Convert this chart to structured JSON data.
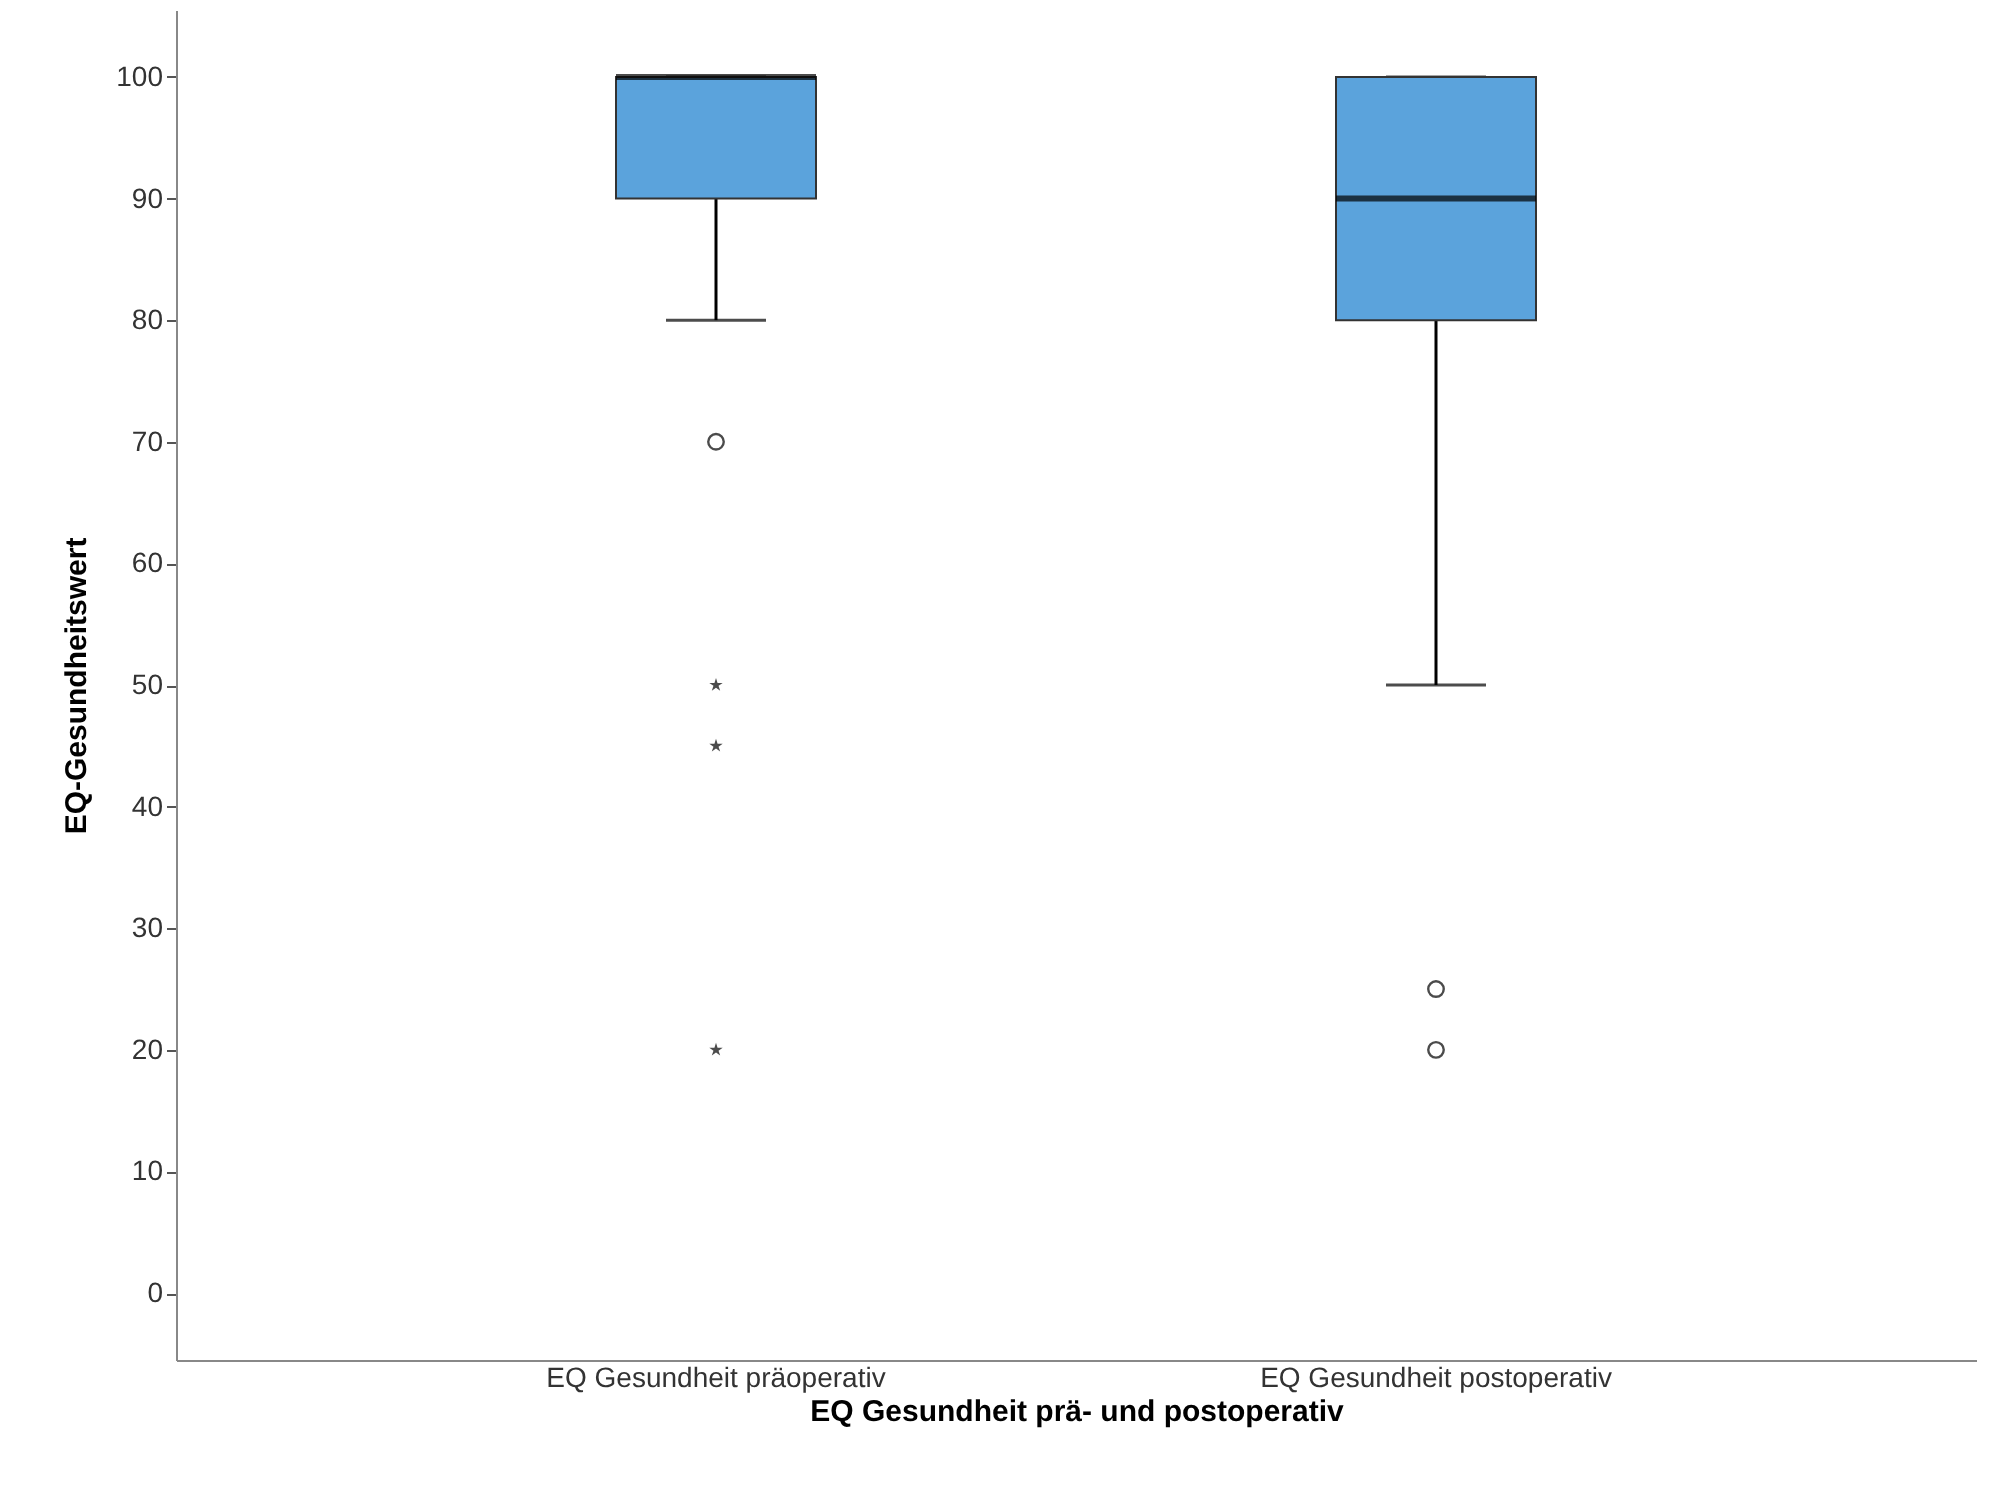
{
  "chart_data": {
    "type": "box",
    "xlabel": "EQ Gesundheit prä- und postoperativ",
    "ylabel": "EQ-Gesundheitswert",
    "categories": [
      "EQ Gesundheit präoperativ",
      "EQ Gesundheit postoperativ"
    ],
    "series": [
      {
        "color": "#5ba3dc",
        "boxes": [
          {
            "low": 80,
            "q1": 90,
            "median": 100,
            "q3": 100,
            "high": 100,
            "outliers": [
              70,
              50,
              45,
              20
            ]
          },
          {
            "low": 50,
            "q1": 80,
            "median": 90,
            "q3": 100,
            "high": 100,
            "outliers": [
              25,
              20
            ]
          }
        ]
      }
    ],
    "ylim": [
      -5.5,
      105.5
    ],
    "yticks": [
      0,
      10,
      20,
      30,
      40,
      50,
      60,
      70,
      80,
      90,
      100
    ],
    "grid": false
  }
}
